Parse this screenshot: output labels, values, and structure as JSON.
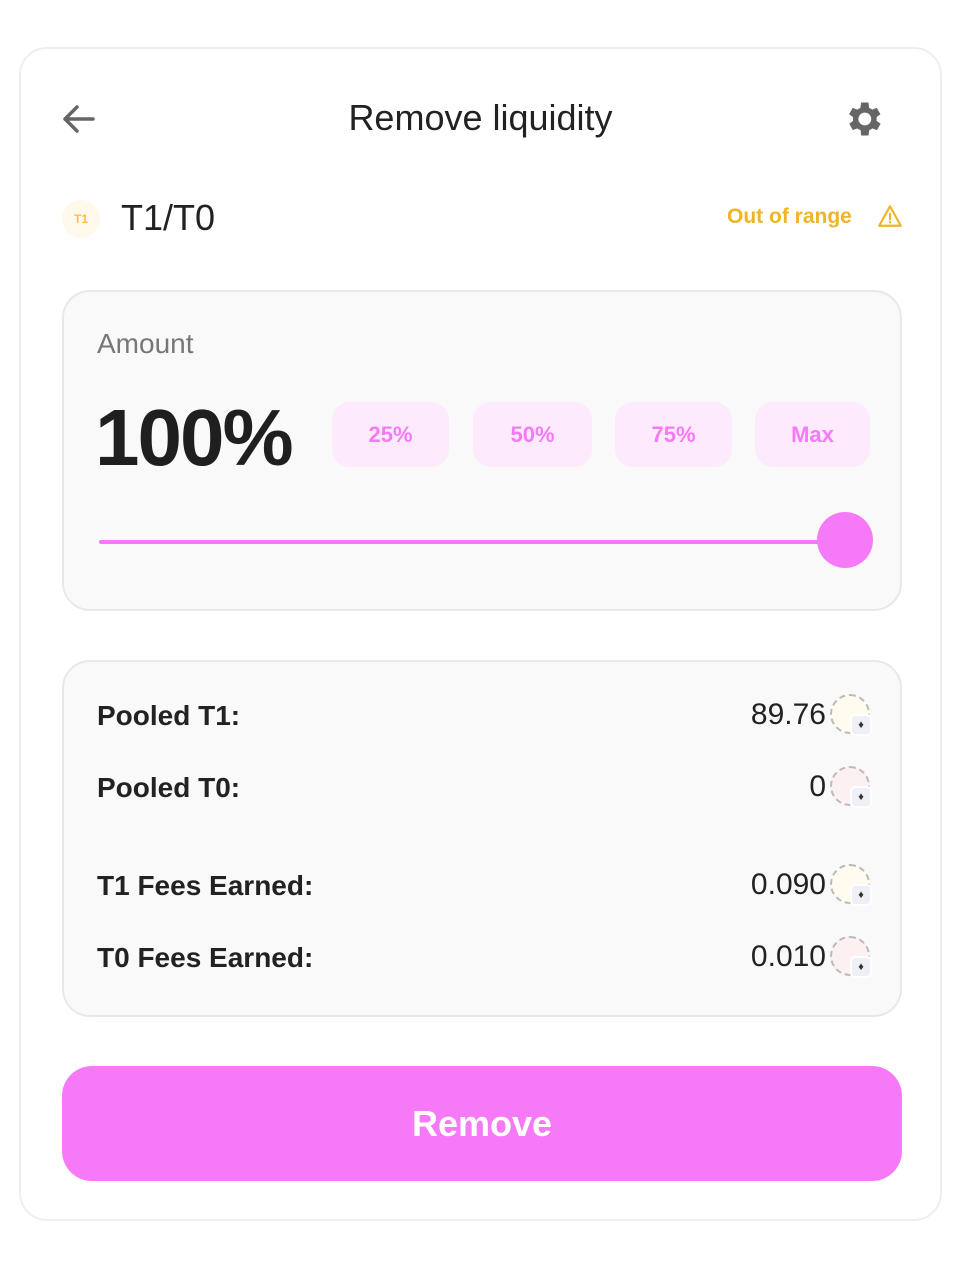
{
  "header": {
    "title": "Remove liquidity",
    "back_icon": "arrow-left-icon",
    "settings_icon": "gear-icon"
  },
  "pair": {
    "token_icon_label": "T1",
    "name": "T1/T0",
    "status": "Out of range",
    "status_color": "#f0b429",
    "status_icon": "warning-triangle-icon"
  },
  "amount": {
    "label": "Amount",
    "value": "100%",
    "percent": 100,
    "presets": [
      "25%",
      "50%",
      "75%",
      "Max"
    ],
    "accent": "#f67af7"
  },
  "positions": [
    {
      "label": "Pooled T1:",
      "value": "89.76",
      "coin_color": "#fffbee"
    },
    {
      "label": "Pooled T0:",
      "value": "0",
      "coin_color": "#fdf0f0"
    },
    {
      "label": "T1 Fees Earned:",
      "value": "0.090",
      "coin_color": "#fffbee"
    },
    {
      "label": "T0 Fees Earned:",
      "value": "0.010",
      "coin_color": "#fdf0f0"
    }
  ],
  "action": {
    "remove_label": "Remove"
  }
}
